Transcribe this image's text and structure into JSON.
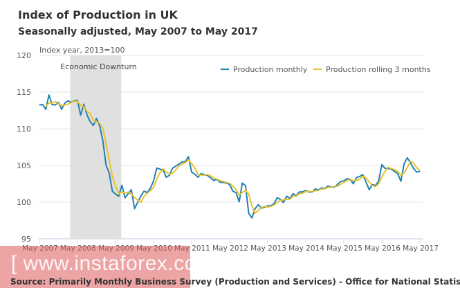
{
  "chart_data": {
    "type": "line",
    "title": "Index of Production in UK",
    "subtitle": "Seasonally adjusted, May 2007 to May 2017",
    "ylabel": "Index year, 2013=100",
    "ylim": [
      95,
      120
    ],
    "yticks": [
      "95",
      "100",
      "105",
      "110",
      "115",
      "120"
    ],
    "xticks": [
      "May 2007",
      "May 2008",
      "May 2009",
      "May 2010",
      "May 2011",
      "May 2012",
      "May 2013",
      "May 2014",
      "May 2015",
      "May 2016",
      "May 2017"
    ],
    "x_start": "May 2007",
    "x_end": "May 2017",
    "grid": true,
    "legend_position": "top-right",
    "annotation": {
      "label": "Economic Downturn",
      "from": "Feb 2008",
      "to": "Jun 2009"
    },
    "series": [
      {
        "name": "Production monthly",
        "color": "#2181b3",
        "values": [
          113.25,
          113.3,
          112.65,
          114.6,
          113.3,
          113.25,
          113.6,
          112.65,
          113.5,
          113.8,
          113.6,
          113.8,
          113.9,
          111.85,
          113.35,
          111.9,
          111.0,
          110.45,
          111.4,
          110.4,
          108.35,
          105.05,
          104.0,
          101.5,
          101.1,
          100.8,
          102.3,
          100.6,
          101.15,
          101.7,
          99.1,
          100.0,
          100.85,
          101.5,
          101.3,
          101.9,
          102.9,
          104.65,
          104.5,
          104.4,
          103.4,
          103.65,
          104.65,
          104.9,
          105.2,
          105.5,
          105.5,
          106.2,
          104.1,
          103.8,
          103.4,
          103.9,
          103.75,
          103.65,
          103.3,
          102.95,
          103.1,
          102.7,
          102.7,
          102.6,
          102.4,
          101.5,
          101.3,
          100.05,
          102.6,
          102.25,
          98.5,
          97.85,
          99.1,
          99.65,
          99.2,
          99.3,
          99.5,
          99.5,
          99.8,
          100.6,
          100.4,
          99.95,
          100.8,
          100.5,
          101.15,
          100.85,
          101.4,
          101.4,
          101.6,
          101.4,
          101.4,
          101.8,
          101.65,
          101.95,
          101.85,
          102.2,
          102.1,
          102.05,
          102.4,
          102.8,
          102.9,
          103.2,
          103.1,
          102.5,
          103.35,
          103.5,
          103.75,
          102.75,
          101.7,
          102.4,
          102.25,
          102.9,
          105.1,
          104.6,
          104.6,
          104.5,
          104.2,
          103.9,
          102.85,
          105.2,
          106.05,
          105.4,
          104.6,
          104.1,
          104.2
        ]
      },
      {
        "name": "Production rolling 3 months",
        "color": "#e9c32b",
        "rolling_window": 3
      }
    ],
    "source": "Source: Primarily Monthly Business Survey (Production and Services) -  Office for National Statistics"
  },
  "watermark": "[ www.instaforex.com ]"
}
